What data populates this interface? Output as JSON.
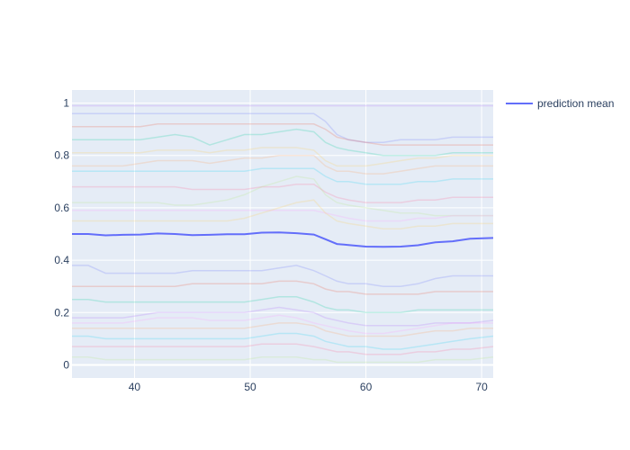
{
  "chart_data": {
    "type": "line",
    "title": "",
    "xlabel": "",
    "ylabel": "",
    "xlim": [
      34.6,
      71.0
    ],
    "ylim": [
      -0.05,
      1.05
    ],
    "x_ticks": [
      40,
      50,
      60,
      70
    ],
    "y_ticks": [
      0,
      0.2,
      0.4,
      0.6,
      0.8,
      1
    ],
    "x_tick_labels": [
      "40",
      "50",
      "60",
      "70"
    ],
    "y_tick_labels": [
      "0",
      "0.2",
      "0.4",
      "0.6",
      "0.8",
      "1"
    ],
    "grid": true,
    "legend": {
      "position": "top-right",
      "entries": [
        "prediction mean"
      ]
    },
    "x": [
      34.6,
      36,
      37.5,
      39,
      40.5,
      42,
      43.5,
      45,
      46.5,
      48,
      49.5,
      51,
      52.5,
      54,
      55.5,
      56.5,
      57.5,
      58.5,
      60,
      61.5,
      63,
      64.5,
      66,
      67.5,
      69,
      71
    ],
    "series": [
      {
        "name": "prediction mean",
        "color": "#636efa",
        "values": [
          0.5,
          0.5,
          0.495,
          0.497,
          0.498,
          0.502,
          0.5,
          0.496,
          0.497,
          0.499,
          0.499,
          0.505,
          0.506,
          0.503,
          0.498,
          0.48,
          0.462,
          0.458,
          0.452,
          0.451,
          0.452,
          0.457,
          0.468,
          0.472,
          0.482,
          0.485
        ]
      }
    ],
    "ice_lines": [
      [
        0.96,
        0.96,
        0.96,
        0.96,
        0.96,
        0.96,
        0.96,
        0.96,
        0.96,
        0.96,
        0.96,
        0.96,
        0.96,
        0.96,
        0.96,
        0.93,
        0.88,
        0.86,
        0.85,
        0.85,
        0.86,
        0.86,
        0.86,
        0.87,
        0.87,
        0.87
      ],
      [
        0.91,
        0.91,
        0.91,
        0.91,
        0.91,
        0.92,
        0.92,
        0.92,
        0.92,
        0.92,
        0.92,
        0.92,
        0.92,
        0.92,
        0.92,
        0.9,
        0.87,
        0.86,
        0.85,
        0.84,
        0.84,
        0.84,
        0.84,
        0.84,
        0.84,
        0.84
      ],
      [
        0.86,
        0.86,
        0.86,
        0.86,
        0.86,
        0.87,
        0.88,
        0.87,
        0.84,
        0.86,
        0.88,
        0.88,
        0.89,
        0.9,
        0.89,
        0.85,
        0.83,
        0.82,
        0.81,
        0.8,
        0.8,
        0.8,
        0.8,
        0.81,
        0.81,
        0.81
      ],
      [
        0.99,
        0.99,
        0.99,
        0.99,
        0.99,
        0.99,
        0.99,
        0.99,
        0.99,
        0.99,
        0.99,
        0.99,
        0.99,
        0.99,
        0.99,
        0.99,
        0.99,
        0.99,
        0.99,
        0.99,
        0.99,
        0.99,
        0.99,
        0.99,
        0.99,
        0.99
      ],
      [
        0.76,
        0.76,
        0.76,
        0.76,
        0.77,
        0.78,
        0.78,
        0.78,
        0.77,
        0.78,
        0.79,
        0.79,
        0.8,
        0.8,
        0.8,
        0.76,
        0.74,
        0.74,
        0.73,
        0.73,
        0.74,
        0.75,
        0.76,
        0.76,
        0.76,
        0.76
      ],
      [
        0.74,
        0.74,
        0.74,
        0.74,
        0.74,
        0.74,
        0.74,
        0.74,
        0.74,
        0.74,
        0.74,
        0.75,
        0.75,
        0.75,
        0.75,
        0.72,
        0.7,
        0.7,
        0.69,
        0.69,
        0.69,
        0.7,
        0.7,
        0.71,
        0.71,
        0.71
      ],
      [
        0.68,
        0.68,
        0.68,
        0.68,
        0.68,
        0.68,
        0.68,
        0.67,
        0.67,
        0.67,
        0.67,
        0.68,
        0.68,
        0.69,
        0.69,
        0.66,
        0.64,
        0.63,
        0.62,
        0.62,
        0.62,
        0.63,
        0.63,
        0.64,
        0.64,
        0.64
      ],
      [
        0.62,
        0.62,
        0.62,
        0.62,
        0.62,
        0.62,
        0.61,
        0.61,
        0.62,
        0.63,
        0.65,
        0.68,
        0.7,
        0.72,
        0.71,
        0.65,
        0.62,
        0.61,
        0.6,
        0.59,
        0.58,
        0.58,
        0.57,
        0.57,
        0.57,
        0.57
      ],
      [
        0.59,
        0.59,
        0.59,
        0.59,
        0.59,
        0.59,
        0.59,
        0.59,
        0.59,
        0.59,
        0.59,
        0.59,
        0.59,
        0.59,
        0.59,
        0.58,
        0.57,
        0.56,
        0.55,
        0.55,
        0.55,
        0.56,
        0.56,
        0.57,
        0.57,
        0.57
      ],
      [
        0.55,
        0.55,
        0.55,
        0.55,
        0.55,
        0.55,
        0.55,
        0.55,
        0.55,
        0.55,
        0.56,
        0.58,
        0.6,
        0.62,
        0.63,
        0.58,
        0.55,
        0.54,
        0.53,
        0.52,
        0.52,
        0.53,
        0.53,
        0.54,
        0.54,
        0.54
      ],
      [
        0.38,
        0.38,
        0.35,
        0.35,
        0.35,
        0.35,
        0.35,
        0.36,
        0.36,
        0.36,
        0.36,
        0.36,
        0.37,
        0.38,
        0.36,
        0.34,
        0.32,
        0.31,
        0.31,
        0.3,
        0.3,
        0.31,
        0.33,
        0.34,
        0.34,
        0.34
      ],
      [
        0.3,
        0.3,
        0.3,
        0.3,
        0.3,
        0.3,
        0.3,
        0.31,
        0.31,
        0.31,
        0.31,
        0.31,
        0.32,
        0.32,
        0.31,
        0.29,
        0.28,
        0.28,
        0.27,
        0.27,
        0.27,
        0.27,
        0.28,
        0.28,
        0.28,
        0.28
      ],
      [
        0.25,
        0.25,
        0.24,
        0.24,
        0.24,
        0.24,
        0.24,
        0.24,
        0.24,
        0.24,
        0.24,
        0.25,
        0.26,
        0.26,
        0.24,
        0.22,
        0.21,
        0.21,
        0.2,
        0.2,
        0.2,
        0.21,
        0.21,
        0.21,
        0.21,
        0.21
      ],
      [
        0.18,
        0.18,
        0.18,
        0.18,
        0.19,
        0.2,
        0.2,
        0.2,
        0.2,
        0.2,
        0.2,
        0.21,
        0.22,
        0.21,
        0.2,
        0.18,
        0.17,
        0.16,
        0.15,
        0.15,
        0.15,
        0.15,
        0.16,
        0.16,
        0.16,
        0.17
      ],
      [
        0.14,
        0.14,
        0.14,
        0.14,
        0.14,
        0.14,
        0.14,
        0.14,
        0.14,
        0.14,
        0.14,
        0.15,
        0.16,
        0.16,
        0.15,
        0.13,
        0.12,
        0.11,
        0.11,
        0.11,
        0.11,
        0.12,
        0.13,
        0.13,
        0.14,
        0.14
      ],
      [
        0.11,
        0.11,
        0.1,
        0.1,
        0.1,
        0.1,
        0.1,
        0.1,
        0.1,
        0.1,
        0.1,
        0.11,
        0.12,
        0.12,
        0.11,
        0.09,
        0.08,
        0.07,
        0.07,
        0.06,
        0.06,
        0.07,
        0.08,
        0.09,
        0.1,
        0.11
      ],
      [
        0.07,
        0.07,
        0.07,
        0.07,
        0.07,
        0.07,
        0.07,
        0.07,
        0.07,
        0.07,
        0.07,
        0.08,
        0.08,
        0.08,
        0.07,
        0.06,
        0.05,
        0.05,
        0.04,
        0.04,
        0.04,
        0.05,
        0.05,
        0.06,
        0.06,
        0.07
      ],
      [
        0.03,
        0.03,
        0.02,
        0.02,
        0.02,
        0.02,
        0.02,
        0.02,
        0.02,
        0.02,
        0.02,
        0.03,
        0.03,
        0.03,
        0.02,
        0.02,
        0.01,
        0.01,
        0.01,
        0.01,
        0.01,
        0.01,
        0.02,
        0.02,
        0.02,
        0.03
      ],
      [
        0.16,
        0.16,
        0.16,
        0.16,
        0.17,
        0.18,
        0.18,
        0.18,
        0.17,
        0.17,
        0.17,
        0.18,
        0.19,
        0.18,
        0.16,
        0.15,
        0.14,
        0.13,
        0.12,
        0.12,
        0.13,
        0.14,
        0.15,
        0.16,
        0.16,
        0.16
      ],
      [
        0.81,
        0.81,
        0.81,
        0.81,
        0.81,
        0.82,
        0.82,
        0.82,
        0.81,
        0.82,
        0.82,
        0.83,
        0.83,
        0.83,
        0.82,
        0.78,
        0.76,
        0.76,
        0.76,
        0.77,
        0.78,
        0.79,
        0.79,
        0.8,
        0.8,
        0.8
      ]
    ],
    "ice_colors": [
      "#636efa",
      "#ef553b",
      "#00cc96",
      "#ab63fa",
      "#ffa15a",
      "#19d3f3",
      "#ff6692",
      "#b6e880",
      "#ff97ff",
      "#fecb52"
    ]
  }
}
